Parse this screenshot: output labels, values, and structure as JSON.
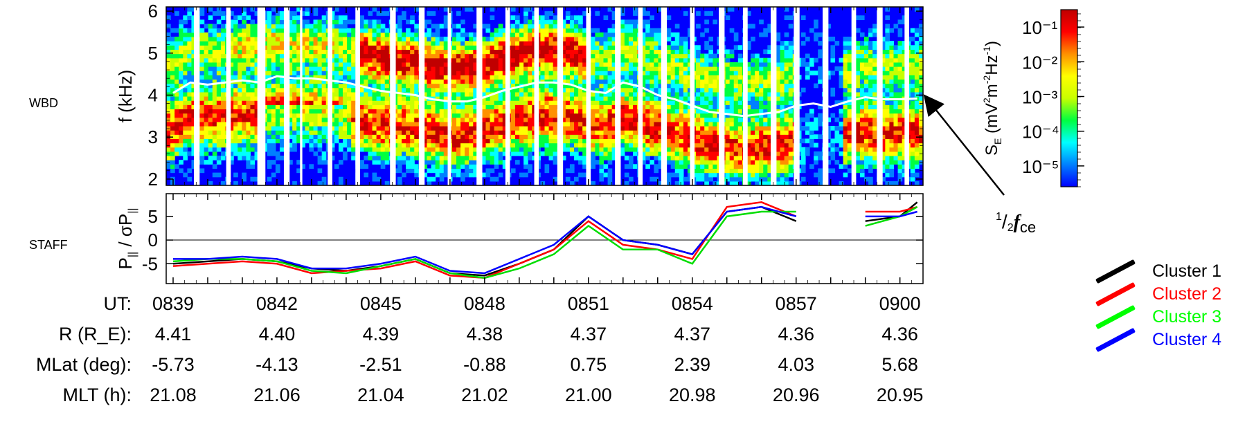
{
  "chart_data": [
    {
      "type": "heatmap",
      "panel": "WBD",
      "ylabel": "f (kHz)",
      "ylim": [
        1.85,
        6.1
      ],
      "yticks": [
        2,
        3,
        4,
        5,
        6
      ],
      "colorbar": {
        "label": "S_E (mV²m⁻²Hz⁻¹)",
        "scale": "log",
        "ticks": [
          "10⁻⁵",
          "10⁻⁴",
          "10⁻³",
          "10⁻²",
          "10⁻¹"
        ],
        "tick_exponents": [
          -5,
          -4,
          -3,
          -2,
          -1
        ],
        "range_exponents": [
          -5.6,
          -0.5
        ],
        "colors": [
          "#0000ff",
          "#0080ff",
          "#00ffff",
          "#00ff40",
          "#c8ff00",
          "#ffff00",
          "#ff9000",
          "#ff0000",
          "#c00000"
        ]
      },
      "annotation": "½fce",
      "half_fce_curve": {
        "x_min": [
          0,
          1.5,
          3,
          4.5,
          6,
          7.5,
          9,
          10.5,
          12,
          13.5,
          15,
          16.5,
          18,
          19.5,
          21,
          22.5,
          24,
          25.5,
          27,
          28.5,
          30,
          31.5,
          33,
          34.5,
          36,
          37.5,
          39,
          40.5,
          42,
          43.5,
          45,
          46.5,
          48,
          49.5,
          51,
          52.5,
          54,
          55.5,
          57,
          58.5,
          60,
          61.5,
          63,
          64.5
        ],
        "f_khz": [
          4.05,
          4.3,
          4.25,
          4.3,
          4.35,
          4.3,
          4.45,
          4.4,
          4.4,
          4.35,
          4.3,
          4.2,
          4.1,
          4.05,
          4.0,
          3.9,
          3.85,
          3.85,
          3.95,
          4.1,
          4.2,
          4.3,
          4.3,
          4.25,
          4.1,
          4.05,
          4.3,
          4.2,
          4.0,
          3.9,
          3.75,
          3.6,
          3.55,
          3.5,
          3.55,
          3.6,
          3.75,
          3.8,
          3.72,
          3.85,
          3.95,
          3.9,
          3.9,
          3.92
        ]
      },
      "data_gaps_min": [
        [
          1.8,
          2.3
        ],
        [
          4.6,
          5.0
        ],
        [
          7.3,
          8.0
        ],
        [
          9.6,
          10.1
        ],
        [
          11.0,
          11.2
        ],
        [
          13.4,
          13.8
        ],
        [
          15.8,
          16.2
        ],
        [
          18.8,
          19.3
        ],
        [
          21.3,
          21.8
        ],
        [
          23.8,
          24.1
        ],
        [
          26.3,
          26.8
        ],
        [
          28.8,
          29.2
        ],
        [
          31.3,
          31.7
        ],
        [
          33.3,
          33.8
        ],
        [
          35.8,
          36.2
        ],
        [
          38.3,
          38.8
        ],
        [
          40.3,
          40.7
        ],
        [
          42.3,
          42.8
        ],
        [
          44.8,
          45.2
        ],
        [
          47.3,
          47.8
        ],
        [
          49.4,
          49.8
        ],
        [
          51.8,
          52.3
        ],
        [
          53.8,
          54.3
        ],
        [
          56.3,
          56.8
        ],
        [
          58.8,
          59.2
        ],
        [
          61.0,
          61.5
        ],
        [
          63.4,
          63.8
        ]
      ]
    },
    {
      "type": "line",
      "panel": "STAFF",
      "ylabel": "P|| / σP||",
      "ylim": [
        -9.2,
        9.8
      ],
      "yticks": [
        -5,
        0,
        5
      ],
      "xlim": [
        -0.6,
        65.0
      ],
      "series": [
        {
          "name": "Cluster 1",
          "color": "#000000",
          "x": [
            0,
            3,
            6,
            9,
            12,
            15,
            18,
            21,
            24,
            27,
            30,
            33,
            36,
            39,
            42,
            45,
            48,
            51,
            54,
            57,
            60,
            63,
            64.5
          ],
          "y": [
            -5,
            -4.5,
            -4,
            -4.5,
            -6,
            -6.5,
            -5.5,
            -4,
            -7,
            -7.5,
            -5,
            -2,
            5,
            0,
            -1,
            -3,
            6,
            7,
            4,
            null,
            4,
            5,
            8
          ]
        },
        {
          "name": "Cluster 2",
          "color": "#ff0000",
          "x": [
            0,
            3,
            6,
            9,
            12,
            15,
            18,
            21,
            24,
            27,
            30,
            33,
            36,
            39,
            42,
            45,
            48,
            51,
            54,
            57,
            60,
            63,
            64.5
          ],
          "y": [
            -5.5,
            -5,
            -4.5,
            -5,
            -7,
            -6.5,
            -6,
            -4.5,
            -7.5,
            -8,
            -5,
            -2,
            4,
            -1,
            -2,
            -4,
            7,
            8,
            5,
            null,
            6,
            6,
            7
          ]
        },
        {
          "name": "Cluster 3",
          "color": "#00dd00",
          "x": [
            0,
            3,
            6,
            9,
            12,
            15,
            18,
            21,
            24,
            27,
            30,
            33,
            36,
            39,
            42,
            45,
            48,
            51,
            54,
            57,
            60,
            63,
            64.5
          ],
          "y": [
            -4.5,
            -4,
            -4,
            -4.5,
            -6.5,
            -7,
            -5.5,
            -4,
            -7,
            -8,
            -6,
            -3,
            3,
            -2,
            -2,
            -5,
            5,
            6,
            6,
            null,
            3,
            5,
            7
          ]
        },
        {
          "name": "Cluster 4",
          "color": "#0000ff",
          "x": [
            0,
            3,
            6,
            9,
            12,
            15,
            18,
            21,
            24,
            27,
            30,
            33,
            36,
            39,
            42,
            45,
            48,
            51,
            54,
            57,
            60,
            63,
            64.5
          ],
          "y": [
            -4,
            -4,
            -3.5,
            -4,
            -6,
            -6,
            -5,
            -3.5,
            -6.5,
            -7,
            -4,
            -1,
            5,
            0,
            -1,
            -3,
            6,
            7,
            5,
            null,
            5,
            5,
            6
          ]
        }
      ]
    }
  ],
  "panel_labels": {
    "wbd": "WBD",
    "staff": "STAFF"
  },
  "ephemeris": {
    "rows": [
      {
        "key": "UT:",
        "values": [
          "0839",
          "0842",
          "0845",
          "0848",
          "0851",
          "0854",
          "0857",
          "0900"
        ]
      },
      {
        "key": "R (R_E):",
        "values": [
          "4.41",
          "4.40",
          "4.39",
          "4.38",
          "4.37",
          "4.37",
          "4.36",
          "4.36"
        ]
      },
      {
        "key": "MLat (deg):",
        "values": [
          "-5.73",
          "-4.13",
          "-2.51",
          "-0.88",
          "0.75",
          "2.39",
          "4.03",
          "5.68"
        ]
      },
      {
        "key": "MLT (h):",
        "values": [
          "21.08",
          "21.06",
          "21.04",
          "21.02",
          "21.00",
          "20.98",
          "20.96",
          "20.95"
        ]
      }
    ]
  },
  "legend": [
    {
      "label": "Cluster 1",
      "color": "#000000"
    },
    {
      "label": "Cluster 2",
      "color": "#ff0000"
    },
    {
      "label": "Cluster 3",
      "color": "#00ff00"
    },
    {
      "label": "Cluster 4",
      "color": "#0000ff"
    }
  ]
}
